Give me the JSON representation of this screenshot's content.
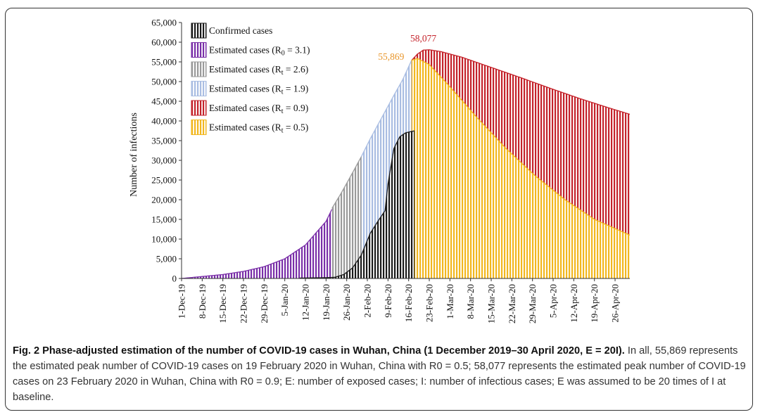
{
  "chart_data": {
    "type": "bar",
    "title": "",
    "xlabel": "",
    "ylabel": "Number of infections",
    "ylim": [
      0,
      65000
    ],
    "yticks": [
      "0",
      "5,000",
      "10,000",
      "15,000",
      "20,000",
      "25,000",
      "30,000",
      "35,000",
      "40,000",
      "45,000",
      "50,000",
      "55,000",
      "60,000",
      "65,000"
    ],
    "xticks": [
      "1-Dec-19",
      "8-Dec-19",
      "15-Dec-19",
      "22-Dec-19",
      "29-Dec-19",
      "5-Jan-20",
      "12-Jan-20",
      "19-Jan-20",
      "26-Jan-20",
      "2-Feb-20",
      "9-Feb-20",
      "16-Feb-20",
      "23-Feb-20",
      "1-Mar-20",
      "8-Mar-20",
      "15-Mar-20",
      "22-Mar-20",
      "29-Mar-20",
      "5-Apr-20",
      "12-Apr-20",
      "19-Apr-20",
      "26-Apr-20"
    ],
    "day_range": [
      0,
      152
    ],
    "legend_position": "top-left",
    "series": [
      {
        "name": "Estimated cases (R0 = 3.1)",
        "sub": "0",
        "sym": "R",
        "val": "3.1",
        "color": "#7a2fa8",
        "day_range": [
          0,
          51
        ],
        "points": [
          [
            0,
            0
          ],
          [
            7,
            500
          ],
          [
            14,
            1000
          ],
          [
            21,
            1800
          ],
          [
            28,
            3000
          ],
          [
            35,
            5000
          ],
          [
            42,
            8500
          ],
          [
            49,
            14500
          ],
          [
            51,
            17600
          ]
        ]
      },
      {
        "name": "Estimated cases (Rt = 2.6)",
        "sub": "t",
        "sym": "R",
        "val": "2.6",
        "color": "#9a9a9a",
        "day_range": [
          51,
          61
        ],
        "points": [
          [
            51,
            17800
          ],
          [
            54,
            21500
          ],
          [
            57,
            25500
          ],
          [
            61,
            31000
          ]
        ]
      },
      {
        "name": "Estimated cases (Rt = 1.9)",
        "sub": "t",
        "sym": "R",
        "val": "1.9",
        "color": "#a9bde2",
        "day_range": [
          61,
          78
        ],
        "points": [
          [
            61,
            31000
          ],
          [
            64,
            35500
          ],
          [
            68,
            41000
          ],
          [
            72,
            46500
          ],
          [
            75,
            50500
          ],
          [
            78,
            55400
          ]
        ]
      },
      {
        "name": "Estimated cases (Rt = 0.9)",
        "sub": "t",
        "sym": "R",
        "val": "0.9",
        "color": "#c4232b",
        "day_range": [
          78,
          152
        ],
        "points": [
          [
            78,
            55400
          ],
          [
            80,
            57000
          ],
          [
            82,
            58000
          ],
          [
            84,
            58077
          ],
          [
            88,
            57600
          ],
          [
            95,
            56200
          ],
          [
            105,
            53600
          ],
          [
            115,
            51000
          ],
          [
            125,
            48300
          ],
          [
            135,
            45700
          ],
          [
            145,
            43300
          ],
          [
            152,
            41700
          ]
        ]
      },
      {
        "name": "Estimated cases (Rt = 0.5)",
        "sub": "t",
        "sym": "R",
        "val": "0.5",
        "color": "#f2b71e",
        "day_range": [
          78,
          152
        ],
        "points": [
          [
            78,
            55400
          ],
          [
            80,
            55869
          ],
          [
            84,
            54300
          ],
          [
            90,
            49500
          ],
          [
            100,
            41000
          ],
          [
            110,
            33000
          ],
          [
            120,
            26000
          ],
          [
            130,
            20000
          ],
          [
            140,
            15000
          ],
          [
            152,
            11000
          ]
        ]
      },
      {
        "name": "Confirmed cases",
        "sub": "",
        "sym": "Confirmed cases",
        "val": "",
        "color": "#1a1a1a",
        "day_range": [
          40,
          79
        ],
        "points": [
          [
            40,
            100
          ],
          [
            49,
            200
          ],
          [
            52,
            300
          ],
          [
            55,
            1000
          ],
          [
            58,
            2700
          ],
          [
            61,
            6000
          ],
          [
            64,
            11500
          ],
          [
            67,
            15000
          ],
          [
            69,
            17200
          ],
          [
            70,
            24000
          ],
          [
            72,
            33000
          ],
          [
            74,
            36000
          ],
          [
            76,
            37000
          ],
          [
            79,
            37500
          ]
        ]
      }
    ],
    "annotations": [
      {
        "text": "58,077",
        "day": 84,
        "value": 58077,
        "color": "#c4232b"
      },
      {
        "text": "55,869",
        "day": 80,
        "value": 55869,
        "color": "#e8952a"
      }
    ]
  },
  "caption": {
    "title": "Fig. 2 Phase-adjusted estimation of the number of COVID-19 cases in Wuhan, China (1 December 2019–30 April 2020, E = 20I).",
    "body": "In all, 55,869 represents the estimated peak number of COVID-19 cases on 19 February 2020 in Wuhan, China with R0 = 0.5; 58,077 represents the estimated peak number of COVID-19 cases on 23 February 2020 in Wuhan, China with R0 = 0.9; E: number of exposed cases; I: number of infectious cases; E was assumed to be 20 times of I at baseline."
  }
}
